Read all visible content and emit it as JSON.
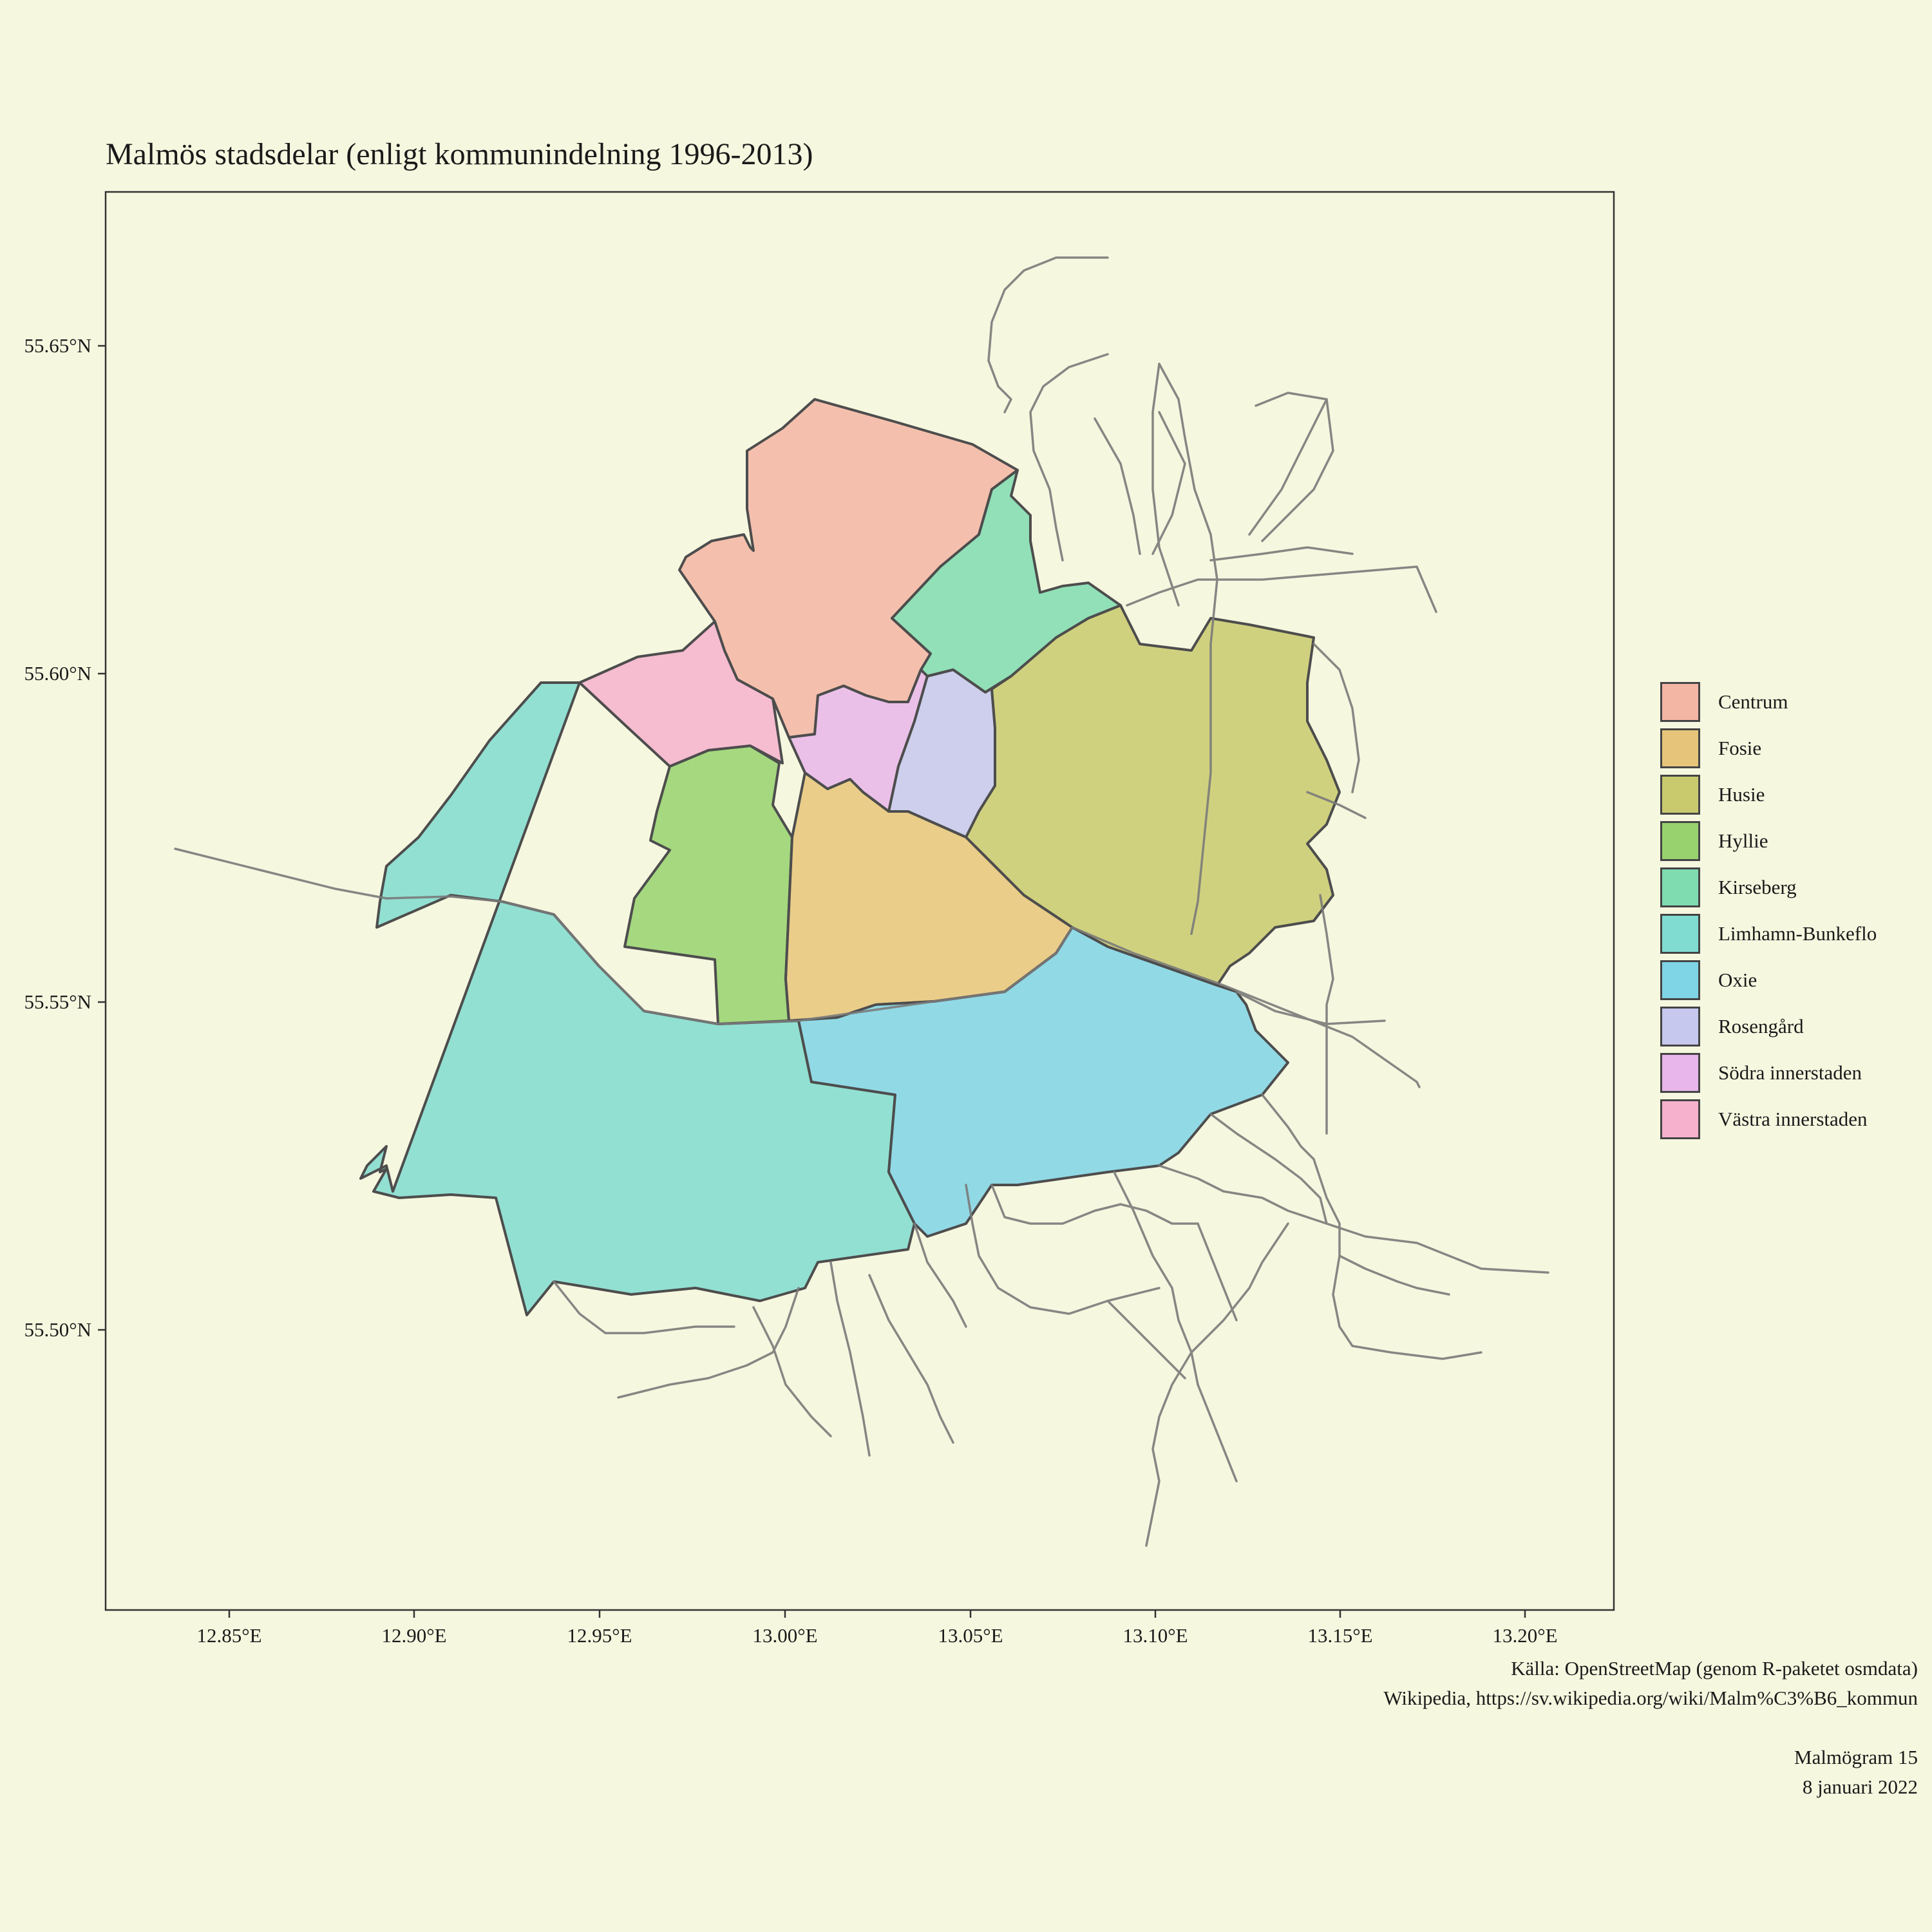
{
  "title": "Malmös stadsdelar (enligt kommunindelning 1996-2013)",
  "axes": {
    "x_ticks": [
      "12.85°E",
      "12.90°E",
      "12.95°E",
      "13.00°E",
      "13.05°E",
      "13.10°E",
      "13.15°E",
      "13.20°E"
    ],
    "y_ticks": [
      "55.65°N",
      "55.60°N",
      "55.55°N",
      "55.50°N"
    ]
  },
  "legend": {
    "items": [
      {
        "label": "Centrum",
        "color": "#f3b6a4"
      },
      {
        "label": "Fosie",
        "color": "#e6c57a"
      },
      {
        "label": "Husie",
        "color": "#c9ca6e"
      },
      {
        "label": "Hyllie",
        "color": "#97d26e"
      },
      {
        "label": "Kirseberg",
        "color": "#7fdcb0"
      },
      {
        "label": "Limhamn-Bunkeflo",
        "color": "#80dcd0"
      },
      {
        "label": "Oxie",
        "color": "#7fd4e6"
      },
      {
        "label": "Rosengård",
        "color": "#c6c8ee"
      },
      {
        "label": "Södra innerstaden",
        "color": "#e8b6ea"
      },
      {
        "label": "Västra innerstaden",
        "color": "#f6b1cd"
      }
    ]
  },
  "caption": {
    "line1": "Källa: OpenStreetMap (genom R-paketet osmdata)",
    "line2": "Wikipedia, https://sv.wikipedia.org/wiki/Malm%C3%B6_kommun",
    "line3": "Malmögram 15",
    "line4": "8 januari 2022"
  },
  "colors": {
    "background": "#f6f7df",
    "border": "#444444",
    "roads": "#7a7a7a"
  }
}
